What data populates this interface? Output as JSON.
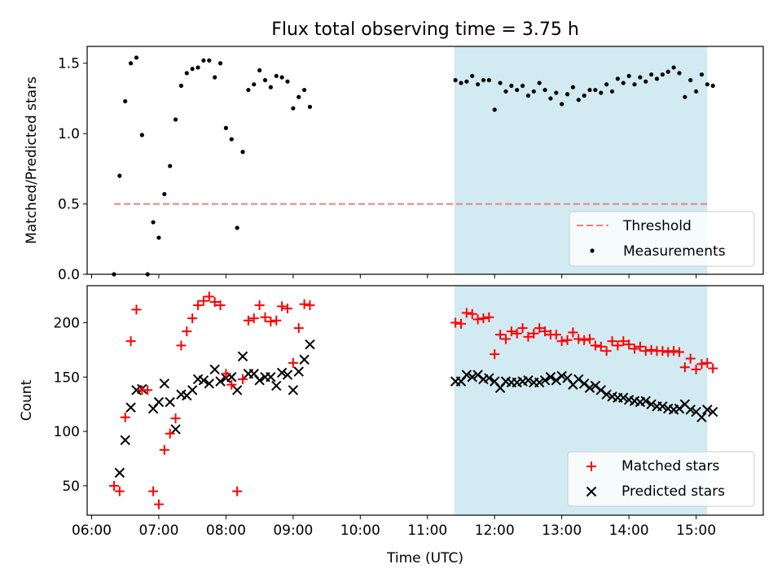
{
  "title": "Flux total observing time = 3.75 h",
  "colors": {
    "shade": "#add8e6",
    "threshold": "#f08080",
    "matched": "#ff0000",
    "predicted": "#000000",
    "measure": "#000000"
  },
  "chart_data": [
    {
      "type": "scatter",
      "ylabel": "Matched/Predicted stars",
      "xlabel": "",
      "ylim": [
        0,
        1.62
      ],
      "yticks": [
        "0.0",
        "0.5",
        "1.0",
        "1.5"
      ],
      "ytick_values": [
        0,
        0.5,
        1.0,
        1.5
      ],
      "xlim": [
        "05:56",
        "16:00"
      ],
      "shaded_span": [
        "11:24",
        "15:10"
      ],
      "threshold": {
        "name": "Threshold",
        "y": 0.5,
        "x": [
          "06:20",
          "15:10"
        ]
      },
      "legend": {
        "placement": "lower-right",
        "entries": [
          "Threshold",
          "Measurements"
        ]
      },
      "series": [
        {
          "name": "Measurements",
          "points": [
            [
              "06:20",
              0.0
            ],
            [
              "06:25",
              0.7
            ],
            [
              "06:30",
              1.23
            ],
            [
              "06:35",
              1.5
            ],
            [
              "06:40",
              1.54
            ],
            [
              "06:45",
              0.99
            ],
            [
              "06:50",
              0.0
            ],
            [
              "06:55",
              0.37
            ],
            [
              "07:00",
              0.26
            ],
            [
              "07:05",
              0.57
            ],
            [
              "07:10",
              0.77
            ],
            [
              "07:15",
              1.1
            ],
            [
              "07:20",
              1.34
            ],
            [
              "07:25",
              1.43
            ],
            [
              "07:30",
              1.46
            ],
            [
              "07:35",
              1.47
            ],
            [
              "07:40",
              1.52
            ],
            [
              "07:45",
              1.52
            ],
            [
              "07:50",
              1.4
            ],
            [
              "07:55",
              1.5
            ],
            [
              "08:00",
              1.04
            ],
            [
              "08:05",
              0.96
            ],
            [
              "08:10",
              0.33
            ],
            [
              "08:15",
              0.87
            ],
            [
              "08:20",
              1.31
            ],
            [
              "08:25",
              1.35
            ],
            [
              "08:30",
              1.45
            ],
            [
              "08:35",
              1.38
            ],
            [
              "08:40",
              1.33
            ],
            [
              "08:45",
              1.41
            ],
            [
              "08:50",
              1.4
            ],
            [
              "08:55",
              1.37
            ],
            [
              "09:00",
              1.18
            ],
            [
              "09:05",
              1.26
            ],
            [
              "09:10",
              1.31
            ],
            [
              "09:15",
              1.19
            ],
            [
              "11:25",
              1.38
            ],
            [
              "11:30",
              1.36
            ],
            [
              "11:35",
              1.37
            ],
            [
              "11:40",
              1.41
            ],
            [
              "11:45",
              1.35
            ],
            [
              "11:50",
              1.38
            ],
            [
              "11:55",
              1.38
            ],
            [
              "12:00",
              1.17
            ],
            [
              "12:05",
              1.36
            ],
            [
              "12:10",
              1.3
            ],
            [
              "12:15",
              1.34
            ],
            [
              "12:20",
              1.31
            ],
            [
              "12:25",
              1.34
            ],
            [
              "12:30",
              1.27
            ],
            [
              "12:35",
              1.3
            ],
            [
              "12:40",
              1.36
            ],
            [
              "12:45",
              1.31
            ],
            [
              "12:50",
              1.25
            ],
            [
              "12:55",
              1.29
            ],
            [
              "13:00",
              1.21
            ],
            [
              "13:05",
              1.28
            ],
            [
              "13:10",
              1.33
            ],
            [
              "13:15",
              1.24
            ],
            [
              "13:20",
              1.27
            ],
            [
              "13:25",
              1.31
            ],
            [
              "13:30",
              1.31
            ],
            [
              "13:35",
              1.29
            ],
            [
              "13:40",
              1.35
            ],
            [
              "13:45",
              1.3
            ],
            [
              "13:50",
              1.39
            ],
            [
              "13:55",
              1.36
            ],
            [
              "14:00",
              1.41
            ],
            [
              "14:05",
              1.35
            ],
            [
              "14:10",
              1.4
            ],
            [
              "14:15",
              1.37
            ],
            [
              "14:20",
              1.42
            ],
            [
              "14:25",
              1.39
            ],
            [
              "14:30",
              1.42
            ],
            [
              "14:35",
              1.44
            ],
            [
              "14:40",
              1.47
            ],
            [
              "14:45",
              1.43
            ],
            [
              "14:50",
              1.26
            ],
            [
              "14:55",
              1.38
            ],
            [
              "15:00",
              1.3
            ],
            [
              "15:05",
              1.42
            ],
            [
              "15:10",
              1.35
            ],
            [
              "15:15",
              1.34
            ]
          ]
        }
      ]
    },
    {
      "type": "scatter",
      "ylabel": "Count",
      "xlabel": "Time (UTC)",
      "ylim": [
        23,
        234
      ],
      "yticks": [
        "50",
        "100",
        "150",
        "200"
      ],
      "ytick_values": [
        50,
        100,
        150,
        200
      ],
      "xlim": [
        "05:56",
        "16:00"
      ],
      "xticks": [
        "06:00",
        "07:00",
        "08:00",
        "09:00",
        "10:00",
        "11:00",
        "12:00",
        "13:00",
        "14:00",
        "15:00"
      ],
      "shaded_span": [
        "11:24",
        "15:10"
      ],
      "legend": {
        "placement": "lower-right",
        "entries": [
          "Matched stars",
          "Predicted stars"
        ]
      },
      "series": [
        {
          "name": "Matched stars",
          "marker": "plus",
          "points": [
            [
              "06:20",
              50
            ],
            [
              "06:25",
              45
            ],
            [
              "06:30",
              113
            ],
            [
              "06:35",
              183
            ],
            [
              "06:40",
              212
            ],
            [
              "06:45",
              138
            ],
            [
              "06:50",
              138
            ],
            [
              "06:55",
              45
            ],
            [
              "07:00",
              33
            ],
            [
              "07:05",
              83
            ],
            [
              "07:10",
              98
            ],
            [
              "07:15",
              112
            ],
            [
              "07:20",
              179
            ],
            [
              "07:25",
              192
            ],
            [
              "07:30",
              204
            ],
            [
              "07:35",
              216
            ],
            [
              "07:40",
              220
            ],
            [
              "07:45",
              224
            ],
            [
              "07:50",
              219
            ],
            [
              "07:55",
              216
            ],
            [
              "08:00",
              153
            ],
            [
              "08:05",
              143
            ],
            [
              "08:10",
              45
            ],
            [
              "08:15",
              148
            ],
            [
              "08:20",
              202
            ],
            [
              "08:25",
              204
            ],
            [
              "08:30",
              216
            ],
            [
              "08:35",
              205
            ],
            [
              "08:40",
              201
            ],
            [
              "08:45",
              202
            ],
            [
              "08:50",
              215
            ],
            [
              "08:55",
              213
            ],
            [
              "09:00",
              163
            ],
            [
              "09:05",
              195
            ],
            [
              "09:10",
              217
            ],
            [
              "09:15",
              216
            ],
            [
              "11:25",
              200
            ],
            [
              "11:30",
              199
            ],
            [
              "11:35",
              209
            ],
            [
              "11:40",
              208
            ],
            [
              "11:45",
              203
            ],
            [
              "11:50",
              204
            ],
            [
              "11:55",
              205
            ],
            [
              "12:00",
              171
            ],
            [
              "12:05",
              189
            ],
            [
              "12:10",
              185
            ],
            [
              "12:15",
              192
            ],
            [
              "12:20",
              190
            ],
            [
              "12:25",
              195
            ],
            [
              "12:30",
              187
            ],
            [
              "12:35",
              190
            ],
            [
              "12:40",
              195
            ],
            [
              "12:45",
              192
            ],
            [
              "12:50",
              189
            ],
            [
              "12:55",
              189
            ],
            [
              "13:00",
              183
            ],
            [
              "13:05",
              184
            ],
            [
              "13:10",
              191
            ],
            [
              "13:15",
              185
            ],
            [
              "13:20",
              184
            ],
            [
              "13:25",
              185
            ],
            [
              "13:30",
              179
            ],
            [
              "13:35",
              178
            ],
            [
              "13:40",
              174
            ],
            [
              "13:45",
              183
            ],
            [
              "13:50",
              179
            ],
            [
              "13:55",
              183
            ],
            [
              "14:00",
              180
            ],
            [
              "14:05",
              176
            ],
            [
              "14:10",
              178
            ],
            [
              "14:15",
              174
            ],
            [
              "14:20",
              175
            ],
            [
              "14:25",
              174
            ],
            [
              "14:30",
              174
            ],
            [
              "14:35",
              173
            ],
            [
              "14:40",
              174
            ],
            [
              "14:45",
              173
            ],
            [
              "14:50",
              159
            ],
            [
              "14:55",
              167
            ],
            [
              "15:00",
              157
            ],
            [
              "15:05",
              162
            ],
            [
              "15:10",
              163
            ],
            [
              "15:15",
              158
            ]
          ]
        },
        {
          "name": "Predicted stars",
          "marker": "x",
          "points": [
            [
              "06:25",
              62
            ],
            [
              "06:30",
              92
            ],
            [
              "06:35",
              122
            ],
            [
              "06:40",
              138
            ],
            [
              "06:45",
              139
            ],
            [
              "06:55",
              121
            ],
            [
              "07:00",
              127
            ],
            [
              "07:05",
              144
            ],
            [
              "07:10",
              127
            ],
            [
              "07:15",
              102
            ],
            [
              "07:20",
              134
            ],
            [
              "07:25",
              133
            ],
            [
              "07:30",
              138
            ],
            [
              "07:35",
              148
            ],
            [
              "07:40",
              147
            ],
            [
              "07:45",
              144
            ],
            [
              "07:50",
              157
            ],
            [
              "07:55",
              146
            ],
            [
              "08:00",
              149
            ],
            [
              "08:05",
              150
            ],
            [
              "08:10",
              138
            ],
            [
              "08:15",
              169
            ],
            [
              "08:20",
              153
            ],
            [
              "08:25",
              153
            ],
            [
              "08:30",
              147
            ],
            [
              "08:35",
              150
            ],
            [
              "08:40",
              150
            ],
            [
              "08:45",
              142
            ],
            [
              "08:50",
              154
            ],
            [
              "08:55",
              152
            ],
            [
              "09:00",
              138
            ],
            [
              "09:05",
              155
            ],
            [
              "09:10",
              166
            ],
            [
              "09:15",
              180
            ],
            [
              "11:25",
              146
            ],
            [
              "11:30",
              146
            ],
            [
              "11:35",
              152
            ],
            [
              "11:40",
              150
            ],
            [
              "11:45",
              152
            ],
            [
              "11:50",
              148
            ],
            [
              "11:55",
              149
            ],
            [
              "12:00",
              146
            ],
            [
              "12:05",
              140
            ],
            [
              "12:10",
              146
            ],
            [
              "12:15",
              145
            ],
            [
              "12:20",
              145
            ],
            [
              "12:25",
              146
            ],
            [
              "12:30",
              147
            ],
            [
              "12:35",
              145
            ],
            [
              "12:40",
              145
            ],
            [
              "12:45",
              147
            ],
            [
              "12:50",
              150
            ],
            [
              "12:55",
              147
            ],
            [
              "13:00",
              151
            ],
            [
              "13:05",
              149
            ],
            [
              "13:10",
              143
            ],
            [
              "13:15",
              148
            ],
            [
              "13:20",
              144
            ],
            [
              "13:25",
              140
            ],
            [
              "13:30",
              142
            ],
            [
              "13:35",
              138
            ],
            [
              "13:40",
              134
            ],
            [
              "13:45",
              132
            ],
            [
              "13:50",
              131
            ],
            [
              "13:55",
              131
            ],
            [
              "14:00",
              129
            ],
            [
              "14:05",
              128
            ],
            [
              "14:10",
              127
            ],
            [
              "14:15",
              128
            ],
            [
              "14:20",
              125
            ],
            [
              "14:25",
              123
            ],
            [
              "14:30",
              123
            ],
            [
              "14:35",
              121
            ],
            [
              "14:40",
              120
            ],
            [
              "14:45",
              121
            ],
            [
              "14:50",
              125
            ],
            [
              "14:55",
              120
            ],
            [
              "15:00",
              118
            ],
            [
              "15:05",
              113
            ],
            [
              "15:10",
              120
            ],
            [
              "15:15",
              118
            ]
          ]
        }
      ]
    }
  ]
}
